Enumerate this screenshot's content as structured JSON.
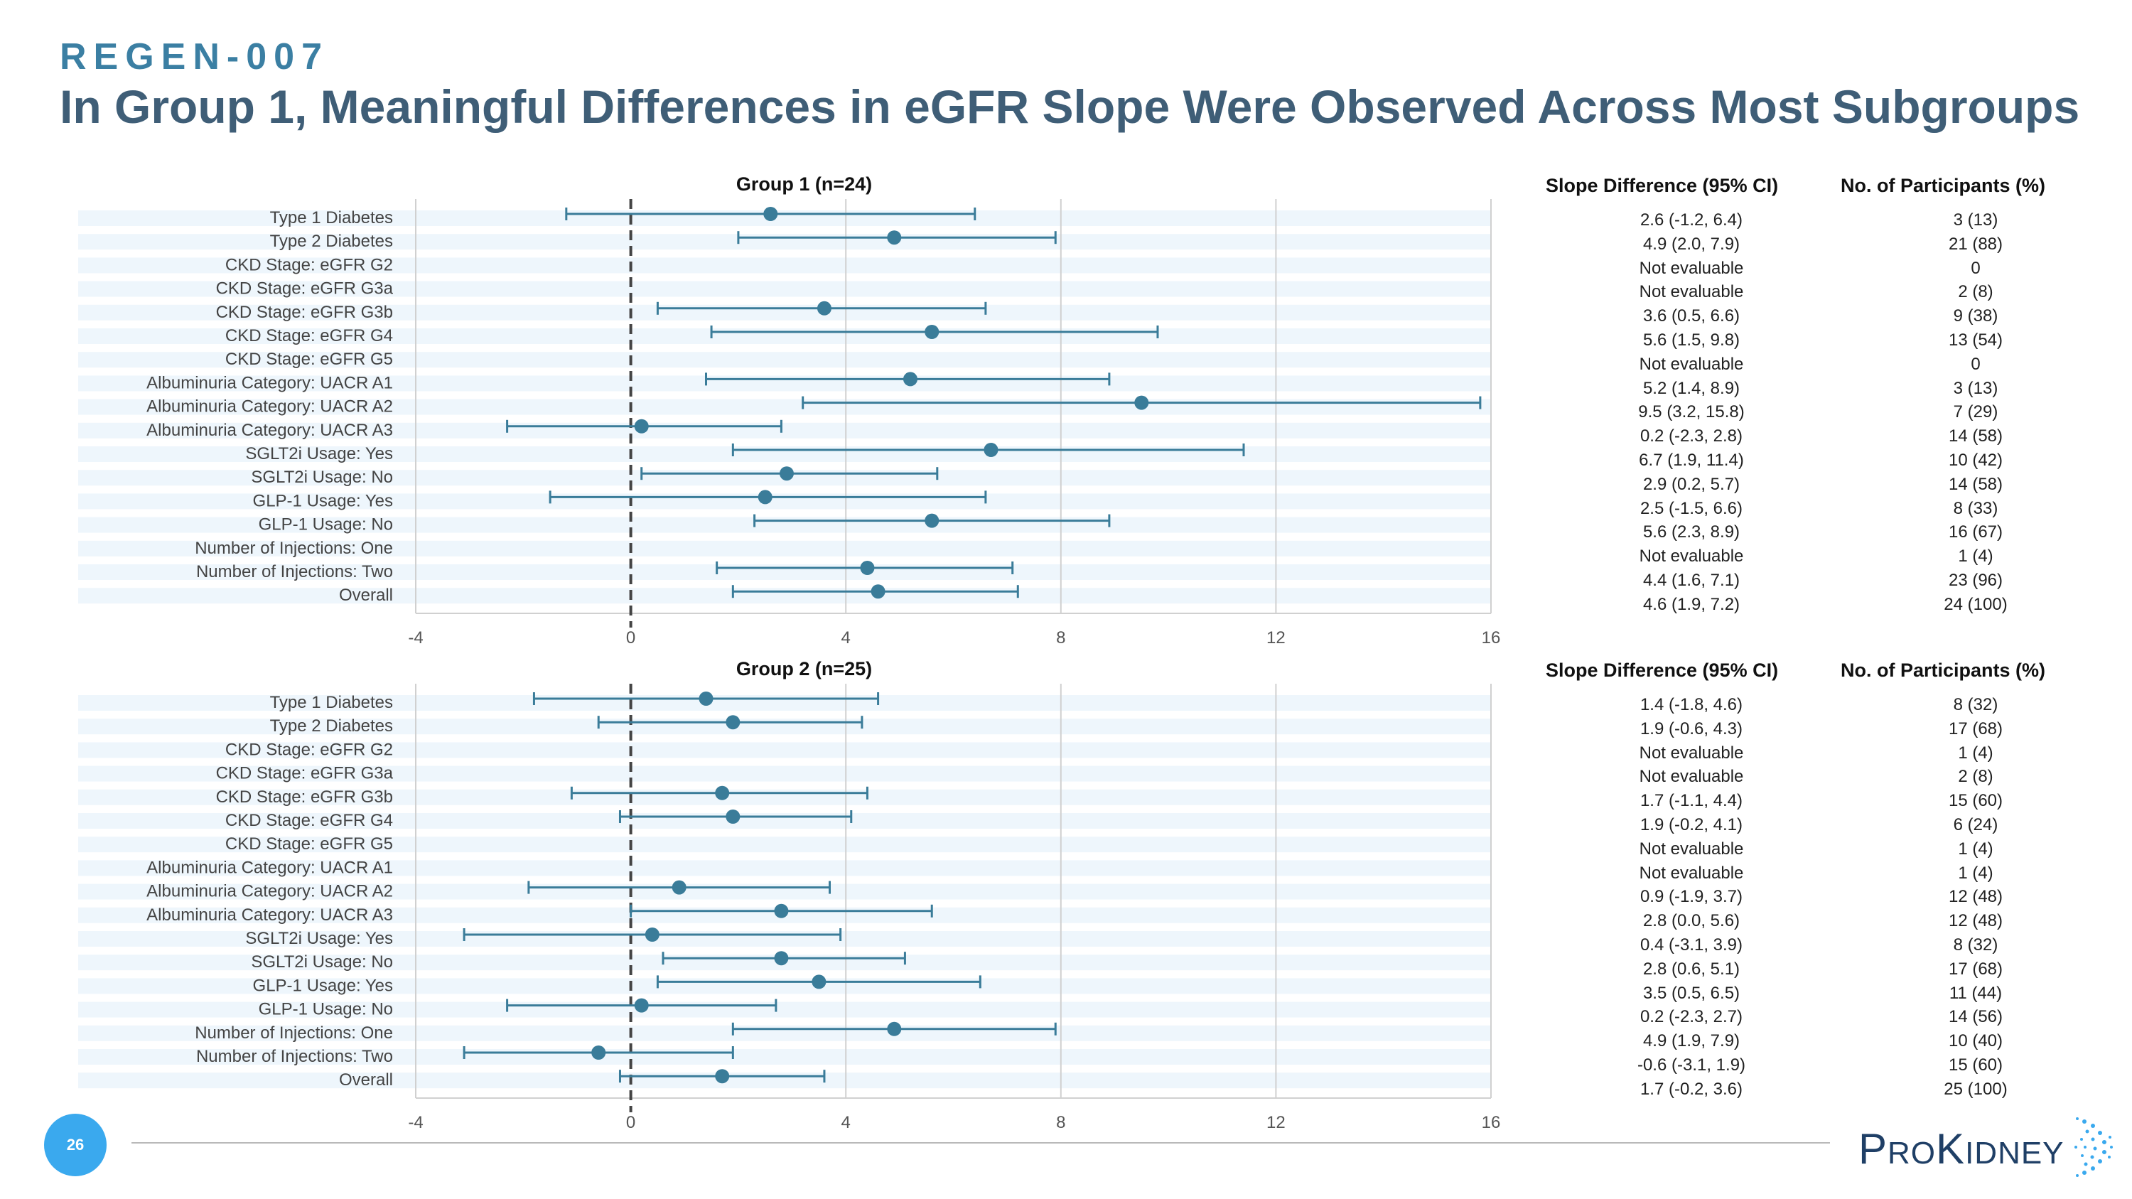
{
  "header": {
    "tag": "REGEN-007",
    "title": "In Group 1, Meaningful Differences in eGFR Slope Were Observed Across Most Subgroups"
  },
  "table_headers": {
    "slope": "Slope Difference (95% CI)",
    "participants": "No. of Participants (%)"
  },
  "colors": {
    "marker": "#3a7c99",
    "band": "#eef6fc",
    "grid": "#d0d0d0",
    "zero_line": "#444444",
    "page_circle": "#3aa9ee"
  },
  "page_number": "26",
  "logo": {
    "p": "P",
    "ro": "RO",
    "k": "K",
    "idney": "IDNEY"
  },
  "chart_data": [
    {
      "type": "forest",
      "title": "Group 1 (n=24)",
      "xlim": [
        -4,
        16
      ],
      "xticks": [
        "-4",
        "0",
        "4",
        "8",
        "12",
        "16"
      ],
      "reference_line": 0,
      "rows": [
        {
          "label": "Type 1 Diabetes",
          "est": 2.6,
          "lo": -1.2,
          "hi": 6.4,
          "ci_text": "2.6 (-1.2, 6.4)",
          "n_text": "3 (13)"
        },
        {
          "label": "Type 2 Diabetes",
          "est": 4.9,
          "lo": 2.0,
          "hi": 7.9,
          "ci_text": "4.9 (2.0, 7.9)",
          "n_text": "21 (88)"
        },
        {
          "label": "CKD Stage: eGFR G2",
          "est": null,
          "lo": null,
          "hi": null,
          "ci_text": "Not evaluable",
          "n_text": "0"
        },
        {
          "label": "CKD Stage: eGFR G3a",
          "est": null,
          "lo": null,
          "hi": null,
          "ci_text": "Not evaluable",
          "n_text": "2 (8)"
        },
        {
          "label": "CKD Stage: eGFR G3b",
          "est": 3.6,
          "lo": 0.5,
          "hi": 6.6,
          "ci_text": "3.6 (0.5, 6.6)",
          "n_text": "9 (38)"
        },
        {
          "label": "CKD Stage: eGFR G4",
          "est": 5.6,
          "lo": 1.5,
          "hi": 9.8,
          "ci_text": "5.6 (1.5, 9.8)",
          "n_text": "13 (54)"
        },
        {
          "label": "CKD Stage: eGFR G5",
          "est": null,
          "lo": null,
          "hi": null,
          "ci_text": "Not evaluable",
          "n_text": "0"
        },
        {
          "label": "Albuminuria Category: UACR A1",
          "est": 5.2,
          "lo": 1.4,
          "hi": 8.9,
          "ci_text": "5.2 (1.4, 8.9)",
          "n_text": "3 (13)"
        },
        {
          "label": "Albuminuria Category: UACR A2",
          "est": 9.5,
          "lo": 3.2,
          "hi": 15.8,
          "ci_text": "9.5 (3.2, 15.8)",
          "n_text": "7 (29)"
        },
        {
          "label": "Albuminuria Category: UACR A3",
          "est": 0.2,
          "lo": -2.3,
          "hi": 2.8,
          "ci_text": "0.2 (-2.3, 2.8)",
          "n_text": "14 (58)"
        },
        {
          "label": "SGLT2i Usage: Yes",
          "est": 6.7,
          "lo": 1.9,
          "hi": 11.4,
          "ci_text": "6.7 (1.9, 11.4)",
          "n_text": "10 (42)"
        },
        {
          "label": "SGLT2i Usage: No",
          "est": 2.9,
          "lo": 0.2,
          "hi": 5.7,
          "ci_text": "2.9 (0.2, 5.7)",
          "n_text": "14 (58)"
        },
        {
          "label": "GLP-1 Usage: Yes",
          "est": 2.5,
          "lo": -1.5,
          "hi": 6.6,
          "ci_text": "2.5 (-1.5, 6.6)",
          "n_text": "8 (33)"
        },
        {
          "label": "GLP-1 Usage: No",
          "est": 5.6,
          "lo": 2.3,
          "hi": 8.9,
          "ci_text": "5.6 (2.3, 8.9)",
          "n_text": "16 (67)"
        },
        {
          "label": "Number of Injections: One",
          "est": null,
          "lo": null,
          "hi": null,
          "ci_text": "Not evaluable",
          "n_text": "1 (4)"
        },
        {
          "label": "Number of Injections: Two",
          "est": 4.4,
          "lo": 1.6,
          "hi": 7.1,
          "ci_text": "4.4 (1.6, 7.1)",
          "n_text": "23 (96)"
        },
        {
          "label": "Overall",
          "est": 4.6,
          "lo": 1.9,
          "hi": 7.2,
          "ci_text": "4.6 (1.9, 7.2)",
          "n_text": "24 (100)"
        }
      ]
    },
    {
      "type": "forest",
      "title": "Group 2 (n=25)",
      "xlim": [
        -4,
        16
      ],
      "xticks": [
        "-4",
        "0",
        "4",
        "8",
        "12",
        "16"
      ],
      "reference_line": 0,
      "rows": [
        {
          "label": "Type 1 Diabetes",
          "est": 1.4,
          "lo": -1.8,
          "hi": 4.6,
          "ci_text": "1.4 (-1.8, 4.6)",
          "n_text": "8 (32)"
        },
        {
          "label": "Type 2 Diabetes",
          "est": 1.9,
          "lo": -0.6,
          "hi": 4.3,
          "ci_text": "1.9 (-0.6, 4.3)",
          "n_text": "17 (68)"
        },
        {
          "label": "CKD Stage: eGFR G2",
          "est": null,
          "lo": null,
          "hi": null,
          "ci_text": "Not evaluable",
          "n_text": "1 (4)"
        },
        {
          "label": "CKD Stage: eGFR G3a",
          "est": null,
          "lo": null,
          "hi": null,
          "ci_text": "Not evaluable",
          "n_text": "2 (8)"
        },
        {
          "label": "CKD Stage: eGFR G3b",
          "est": 1.7,
          "lo": -1.1,
          "hi": 4.4,
          "ci_text": "1.7 (-1.1, 4.4)",
          "n_text": "15 (60)"
        },
        {
          "label": "CKD Stage: eGFR G4",
          "est": 1.9,
          "lo": -0.2,
          "hi": 4.1,
          "ci_text": "1.9 (-0.2, 4.1)",
          "n_text": "6 (24)"
        },
        {
          "label": "CKD Stage: eGFR G5",
          "est": null,
          "lo": null,
          "hi": null,
          "ci_text": "Not evaluable",
          "n_text": "1 (4)"
        },
        {
          "label": "Albuminuria Category: UACR A1",
          "est": null,
          "lo": null,
          "hi": null,
          "ci_text": "Not evaluable",
          "n_text": "1 (4)"
        },
        {
          "label": "Albuminuria Category: UACR A2",
          "est": 0.9,
          "lo": -1.9,
          "hi": 3.7,
          "ci_text": "0.9 (-1.9, 3.7)",
          "n_text": "12 (48)"
        },
        {
          "label": "Albuminuria Category: UACR A3",
          "est": 2.8,
          "lo": 0.0,
          "hi": 5.6,
          "ci_text": "2.8 (0.0, 5.6)",
          "n_text": "12 (48)"
        },
        {
          "label": "SGLT2i Usage: Yes",
          "est": 0.4,
          "lo": -3.1,
          "hi": 3.9,
          "ci_text": "0.4 (-3.1, 3.9)",
          "n_text": "8 (32)"
        },
        {
          "label": "SGLT2i Usage: No",
          "est": 2.8,
          "lo": 0.6,
          "hi": 5.1,
          "ci_text": "2.8 (0.6, 5.1)",
          "n_text": "17 (68)"
        },
        {
          "label": "GLP-1 Usage: Yes",
          "est": 3.5,
          "lo": 0.5,
          "hi": 6.5,
          "ci_text": "3.5 (0.5, 6.5)",
          "n_text": "11 (44)"
        },
        {
          "label": "GLP-1 Usage: No",
          "est": 0.2,
          "lo": -2.3,
          "hi": 2.7,
          "ci_text": "0.2 (-2.3, 2.7)",
          "n_text": "14 (56)"
        },
        {
          "label": "Number of Injections: One",
          "est": 4.9,
          "lo": 1.9,
          "hi": 7.9,
          "ci_text": "4.9 (1.9, 7.9)",
          "n_text": "10 (40)"
        },
        {
          "label": "Number of Injections: Two",
          "est": -0.6,
          "lo": -3.1,
          "hi": 1.9,
          "ci_text": "-0.6 (-3.1, 1.9)",
          "n_text": "15 (60)"
        },
        {
          "label": "Overall",
          "est": 1.7,
          "lo": -0.2,
          "hi": 3.6,
          "ci_text": "1.7 (-0.2, 3.6)",
          "n_text": "25 (100)"
        }
      ]
    }
  ]
}
